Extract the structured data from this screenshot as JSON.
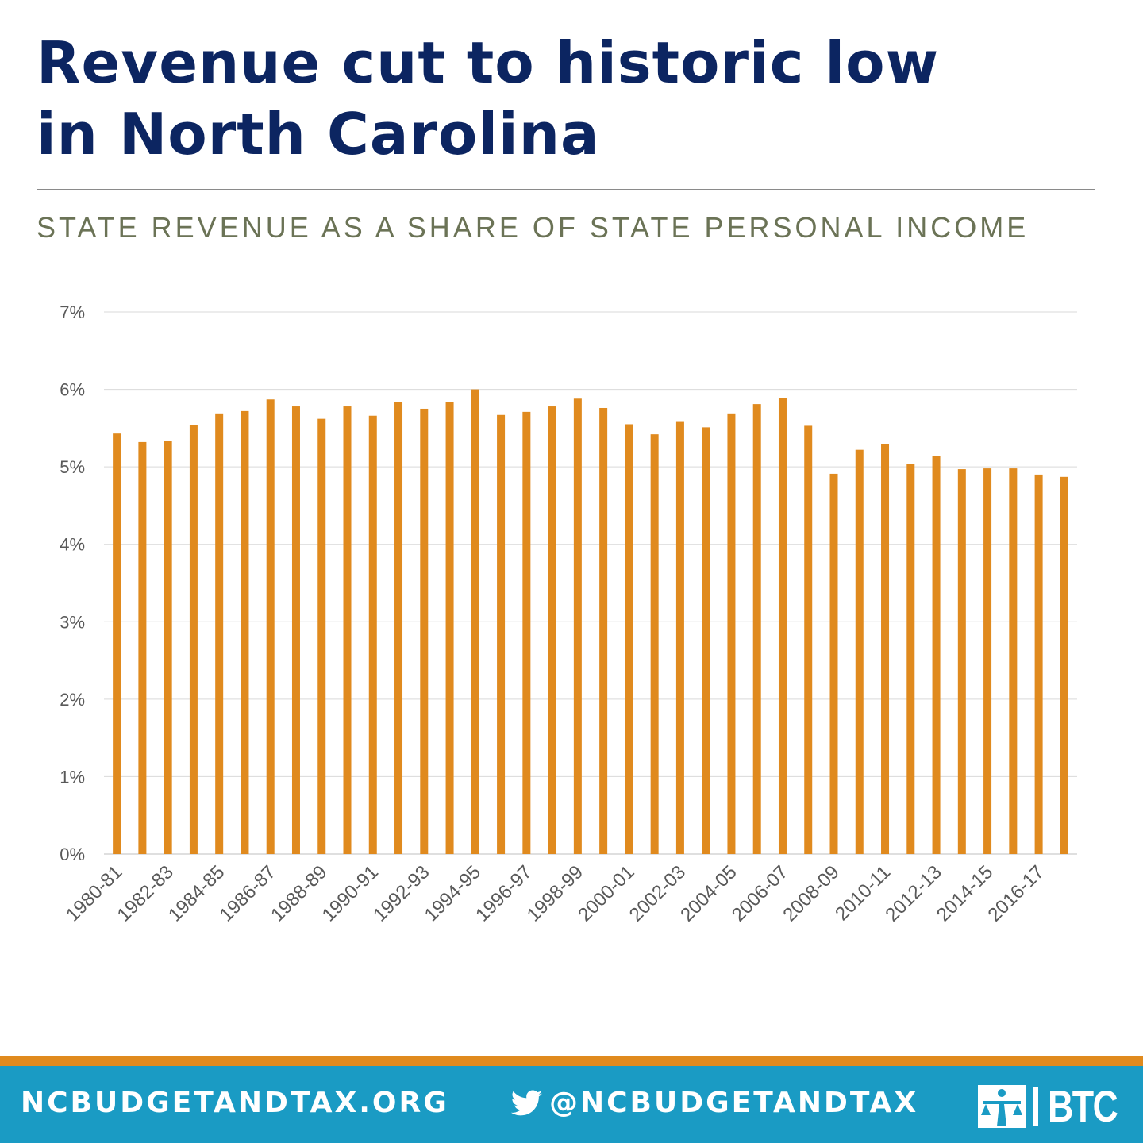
{
  "title_line1": "Revenue cut to historic low",
  "title_line2": "in North Carolina",
  "subtitle": "STATE REVENUE AS A SHARE OF STATE PERSONAL INCOME",
  "footer": {
    "site": "NCBUDGETANDTAX.ORG",
    "twitter": "@NCBUDGETANDTAX",
    "logo_text": "BTC"
  },
  "colors": {
    "title": "#0c2561",
    "subtitle": "#6b7356",
    "bar": "#e08a1e",
    "footer_bg": "#1a9bc4",
    "footer_stripe": "#e08a1e"
  },
  "chart_data": {
    "type": "bar",
    "categories": [
      "1980-81",
      "1981-82",
      "1982-83",
      "1983-84",
      "1984-85",
      "1985-86",
      "1986-87",
      "1987-88",
      "1988-89",
      "1989-90",
      "1990-91",
      "1991-92",
      "1992-93",
      "1993-94",
      "1994-95",
      "1995-96",
      "1996-97",
      "1997-98",
      "1998-99",
      "1999-00",
      "2000-01",
      "2001-02",
      "2002-03",
      "2003-04",
      "2004-05",
      "2005-06",
      "2006-07",
      "2007-08",
      "2008-09",
      "2009-10",
      "2010-11",
      "2011-12",
      "2012-13",
      "2013-14",
      "2014-15",
      "2015-16",
      "2016-17",
      "2017-18"
    ],
    "tick_labels": [
      "1980-81",
      "1982-83",
      "1984-85",
      "1986-87",
      "1988-89",
      "1990-91",
      "1992-93",
      "1994-95",
      "1996-97",
      "1998-99",
      "2000-01",
      "2002-03",
      "2004-05",
      "2006-07",
      "2008-09",
      "2010-11",
      "2012-13",
      "2014-15",
      "2016-17"
    ],
    "values": [
      5.43,
      5.32,
      5.33,
      5.54,
      5.69,
      5.72,
      5.87,
      5.78,
      5.62,
      5.78,
      5.66,
      5.84,
      5.75,
      5.84,
      6.0,
      5.67,
      5.71,
      5.78,
      5.88,
      5.76,
      5.55,
      5.42,
      5.58,
      5.51,
      5.69,
      5.81,
      5.89,
      5.53,
      4.91,
      5.22,
      5.29,
      5.04,
      5.14,
      4.97,
      4.98,
      4.98,
      4.9,
      4.87
    ],
    "y_ticks": [
      "0%",
      "1%",
      "2%",
      "3%",
      "4%",
      "5%",
      "6%",
      "7%"
    ],
    "ylim": [
      0,
      7
    ],
    "grid": true
  }
}
